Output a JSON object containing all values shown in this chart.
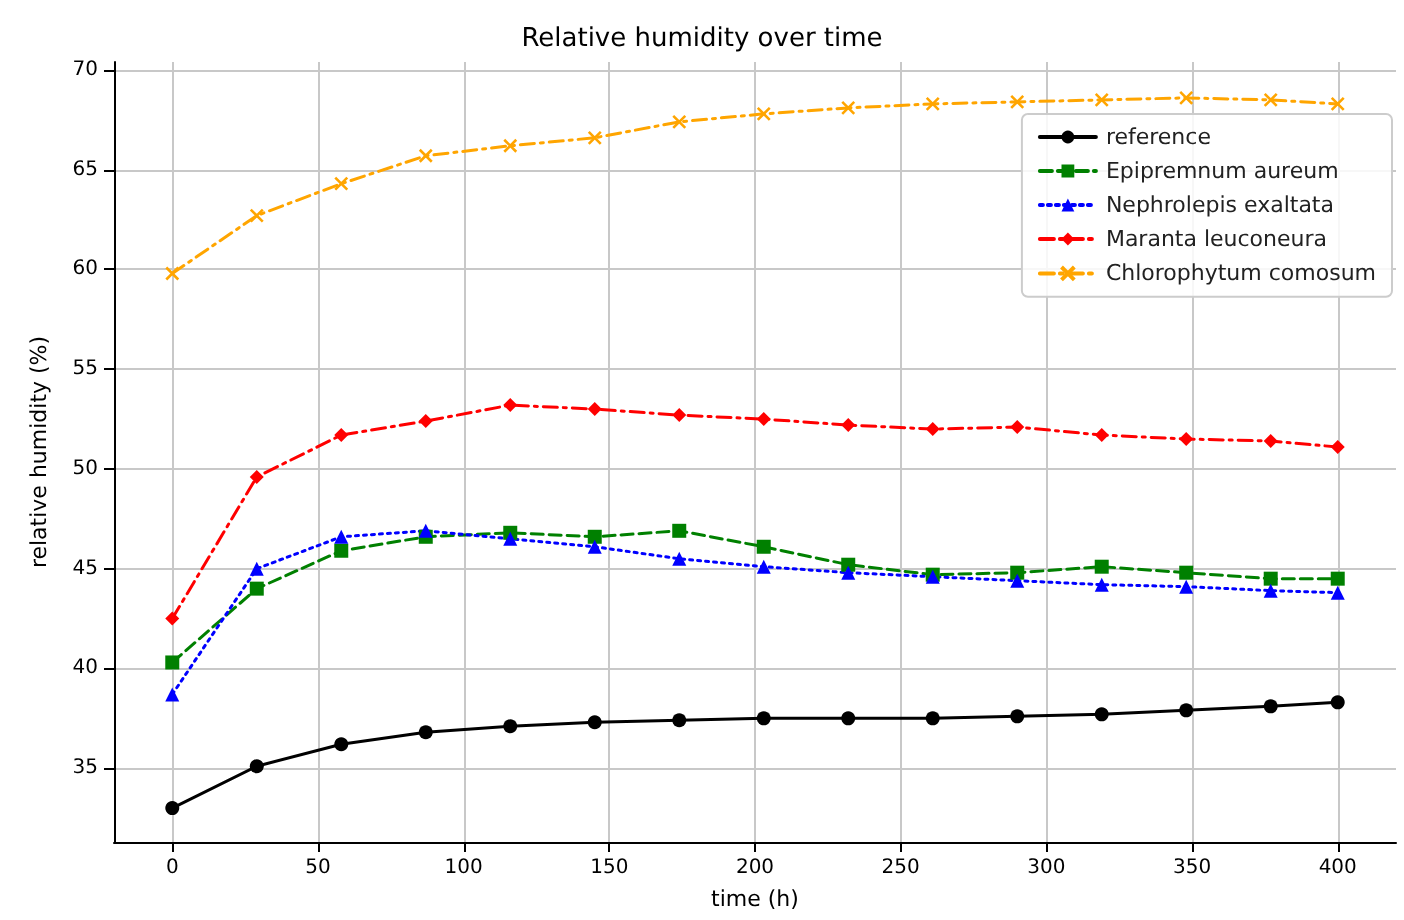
{
  "chart_data": {
    "type": "line",
    "title": "Relative humidity over time",
    "xlabel": "time (h)",
    "ylabel": "relative humidity (%)",
    "x": [
      0,
      29,
      58,
      87,
      116,
      145,
      174,
      203,
      232,
      261,
      290,
      319,
      348,
      377,
      400
    ],
    "series": [
      {
        "name": "reference",
        "color": "#000000",
        "marker": "circle",
        "line_style": "solid",
        "values": [
          33.0,
          35.1,
          36.2,
          36.8,
          37.1,
          37.3,
          37.4,
          37.5,
          37.5,
          37.5,
          37.6,
          37.7,
          37.9,
          38.1,
          38.3
        ]
      },
      {
        "name": "Epipremnum aureum",
        "color": "#008000",
        "marker": "square",
        "line_style": "dashed",
        "values": [
          40.3,
          44.0,
          45.9,
          46.6,
          46.8,
          46.6,
          46.9,
          46.1,
          45.2,
          44.7,
          44.8,
          45.1,
          44.8,
          44.5,
          44.5
        ]
      },
      {
        "name": "Nephrolepis exaltata",
        "color": "#0000ff",
        "marker": "triangle",
        "line_style": "dotted",
        "values": [
          38.7,
          45.0,
          46.6,
          46.9,
          46.5,
          46.1,
          45.5,
          45.1,
          44.8,
          44.6,
          44.4,
          44.2,
          44.1,
          43.9,
          43.8
        ]
      },
      {
        "name": "Maranta leuconeura",
        "color": "#ff0000",
        "marker": "diamond",
        "line_style": "dashdot",
        "values": [
          42.5,
          49.6,
          51.7,
          52.4,
          53.2,
          53.0,
          52.7,
          52.5,
          52.2,
          52.0,
          52.1,
          51.7,
          51.5,
          51.4,
          51.1
        ]
      },
      {
        "name": "Chlorophytum comosum",
        "color": "#ffa500",
        "marker": "cross",
        "line_style": "dashdot",
        "values": [
          59.8,
          62.7,
          64.3,
          65.7,
          66.2,
          66.6,
          67.4,
          67.8,
          68.1,
          68.3,
          68.4,
          68.5,
          68.6,
          68.5,
          68.3
        ]
      }
    ],
    "xlim": [
      -20,
      420
    ],
    "xticks": [
      0,
      50,
      100,
      150,
      200,
      250,
      300,
      350,
      400
    ],
    "ylim": [
      31.3,
      70.4
    ],
    "yticks": [
      35,
      40,
      45,
      50,
      55,
      60,
      65,
      70
    ],
    "grid": true,
    "legend": "top right"
  }
}
